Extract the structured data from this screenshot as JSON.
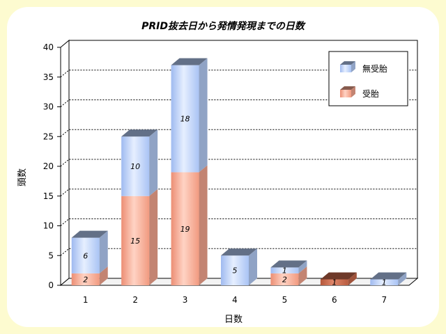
{
  "chart_data": {
    "type": "bar",
    "stacked": true,
    "style": "3d",
    "title": "PRID抜去日から発情発現までの日数",
    "xlabel": "日数",
    "ylabel": "頭数",
    "categories": [
      "1",
      "2",
      "3",
      "4",
      "5",
      "6",
      "7"
    ],
    "series": [
      {
        "name": "受胎",
        "values": [
          2,
          15,
          19,
          0,
          2,
          1,
          0
        ],
        "color": "#f4a58e",
        "color_single": "#c8684a"
      },
      {
        "name": "無受胎",
        "values": [
          6,
          10,
          18,
          5,
          1,
          0,
          1
        ],
        "color": "#b4ccf6"
      }
    ],
    "ylim": [
      0,
      40
    ],
    "yticks": [
      0,
      5,
      10,
      15,
      20,
      25,
      30,
      35,
      40
    ],
    "grid": true,
    "legend_position": "top-right"
  }
}
